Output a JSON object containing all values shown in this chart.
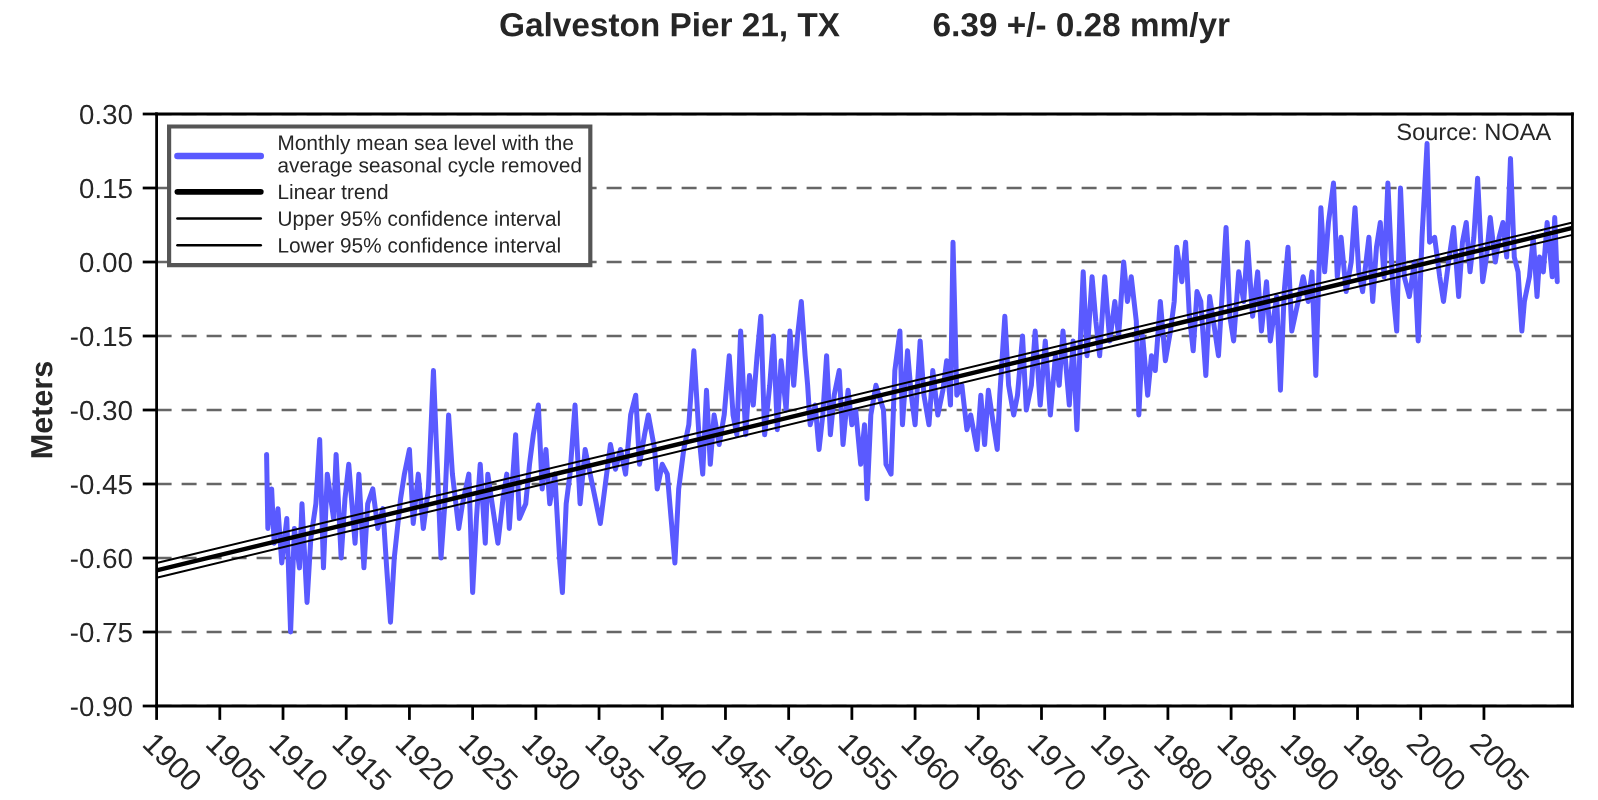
{
  "chart_data": {
    "type": "line",
    "title": "Galveston Pier 21, TX          6.39 +/- 0.28 mm/yr",
    "ylabel": "Meters",
    "annotations": [
      "Source: NOAA"
    ],
    "xlim": [
      1900,
      2012
    ],
    "xticks": [
      1900,
      1905,
      1910,
      1915,
      1920,
      1925,
      1930,
      1935,
      1940,
      1945,
      1950,
      1955,
      1960,
      1965,
      1970,
      1975,
      1980,
      1985,
      1990,
      1995,
      2000,
      2005
    ],
    "ylim": [
      -0.9,
      0.3
    ],
    "yticks": [
      {
        "value": -0.9,
        "label": "-0.90"
      },
      {
        "value": -0.75,
        "label": "-0.75"
      },
      {
        "value": -0.6,
        "label": "-0.60"
      },
      {
        "value": -0.45,
        "label": "-0.45"
      },
      {
        "value": -0.3,
        "label": "-0.30"
      },
      {
        "value": -0.15,
        "label": "-0.15"
      },
      {
        "value": 0,
        "label": "0.00"
      },
      {
        "value": 0.15,
        "label": "0.15"
      },
      {
        "value": 0.3,
        "label": "0.30"
      }
    ],
    "grid": "y",
    "legend": "top left",
    "series": [
      {
        "name": "Monthly mean sea level with the\naverage seasonal cycle removed",
        "color": "#5a5aff",
        "x": [
          1908.7,
          1908.8,
          1909.1,
          1909.3,
          1909.6,
          1909.9,
          1910.3,
          1910.6,
          1910.9,
          1911.3,
          1911.5,
          1911.9,
          1912.2,
          1912.6,
          1912.9,
          1913.2,
          1913.5,
          1914.0,
          1914.2,
          1914.6,
          1914.9,
          1915.2,
          1915.7,
          1916.0,
          1916.4,
          1916.7,
          1917.1,
          1917.5,
          1917.9,
          1918.2,
          1918.5,
          1918.8,
          1919.3,
          1919.6,
          1920.0,
          1920.3,
          1920.7,
          1921.1,
          1921.5,
          1921.9,
          1922.1,
          1922.5,
          1922.8,
          1923.1,
          1923.4,
          1923.9,
          1924.2,
          1924.7,
          1925.0,
          1925.3,
          1925.6,
          1926.0,
          1926.2,
          1926.6,
          1927.0,
          1927.4,
          1927.7,
          1927.9,
          1928.4,
          1928.7,
          1929.2,
          1929.5,
          1929.8,
          1930.2,
          1930.5,
          1930.8,
          1931.1,
          1931.5,
          1931.9,
          1932.1,
          1932.4,
          1932.7,
          1933.1,
          1933.5,
          1933.9,
          1934.3,
          1934.7,
          1935.1,
          1935.5,
          1935.9,
          1936.3,
          1936.7,
          1937.1,
          1937.5,
          1937.9,
          1938.2,
          1938.6,
          1938.9,
          1939.4,
          1939.6,
          1940.0,
          1940.4,
          1940.7,
          1941.0,
          1941.3,
          1941.7,
          1942.1,
          1942.5,
          1942.9,
          1943.2,
          1943.5,
          1943.8,
          1944.1,
          1944.5,
          1944.9,
          1945.3,
          1945.6,
          1945.9,
          1946.2,
          1946.6,
          1946.9,
          1947.2,
          1947.5,
          1947.8,
          1948.1,
          1948.5,
          1948.8,
          1949.1,
          1949.4,
          1949.8,
          1950.1,
          1950.4,
          1950.7,
          1951.0,
          1951.3,
          1951.5,
          1951.7,
          1952.1,
          1952.4,
          1952.7,
          1953.0,
          1953.3,
          1953.6,
          1954.0,
          1954.3,
          1954.7,
          1955.0,
          1955.3,
          1955.7,
          1956.0,
          1956.2,
          1956.5,
          1956.9,
          1957.5,
          1957.7,
          1958.1,
          1958.4,
          1958.8,
          1959.0,
          1959.4,
          1959.7,
          1960.0,
          1960.4,
          1960.7,
          1961.1,
          1961.4,
          1961.8,
          1962.2,
          1962.5,
          1962.8,
          1963.0,
          1963.3,
          1963.7,
          1964.1,
          1964.4,
          1964.9,
          1965.2,
          1965.5,
          1965.8,
          1966.2,
          1966.5,
          1966.7,
          1967.1,
          1967.4,
          1967.8,
          1968.1,
          1968.5,
          1968.8,
          1969.2,
          1969.5,
          1969.9,
          1970.3,
          1970.7,
          1971.1,
          1971.4,
          1971.7,
          1972.2,
          1972.5,
          1972.8,
          1973.1,
          1973.3,
          1973.6,
          1974.0,
          1974.3,
          1974.6,
          1975.0,
          1975.4,
          1975.8,
          1976.1,
          1976.5,
          1976.8,
          1977.1,
          1977.5,
          1977.7,
          1978.0,
          1978.4,
          1978.7,
          1979.0,
          1979.4,
          1979.8,
          1980.2,
          1980.5,
          1980.7,
          1981.1,
          1981.4,
          1981.7,
          1982.0,
          1982.3,
          1982.6,
          1983.0,
          1983.3,
          1983.6,
          1984.0,
          1984.3,
          1984.6,
          1984.9,
          1985.2,
          1985.6,
          1986.0,
          1986.3,
          1986.7,
          1987.1,
          1987.4,
          1987.8,
          1988.1,
          1988.6,
          1988.9,
          1989.2,
          1989.5,
          1989.8,
          1990.3,
          1990.7,
          1991.1,
          1991.4,
          1991.7,
          1992.1,
          1992.4,
          1992.7,
          1993.1,
          1993.4,
          1993.7,
          1994.1,
          1994.5,
          1994.8,
          1995.1,
          1995.4,
          1995.9,
          1996.2,
          1996.5,
          1996.8,
          1997.1,
          1997.4,
          1997.8,
          1998.1,
          1998.4,
          1998.7,
          1999.1,
          1999.5,
          1999.8,
          2000.1,
          2000.5,
          2000.7,
          2001.1,
          2001.5,
          2001.8,
          2002.2,
          2002.6,
          2003.0,
          2003.3,
          2003.6,
          2003.9,
          2004.2,
          2004.5,
          2004.9,
          2005.2,
          2005.5,
          2005.9,
          2006.2,
          2006.5,
          2006.8,
          2007.1,
          2007.4,
          2007.7,
          2008.0,
          2008.2,
          2008.6,
          2008.9,
          2009.2,
          2009.4,
          2009.7,
          2010.0,
          2010.4,
          2010.6,
          2010.8
        ],
        "values": [
          -0.39,
          -0.54,
          -0.46,
          -0.57,
          -0.5,
          -0.61,
          -0.52,
          -0.75,
          -0.54,
          -0.62,
          -0.49,
          -0.69,
          -0.56,
          -0.49,
          -0.36,
          -0.62,
          -0.43,
          -0.52,
          -0.39,
          -0.6,
          -0.48,
          -0.41,
          -0.57,
          -0.43,
          -0.62,
          -0.49,
          -0.46,
          -0.54,
          -0.5,
          -0.62,
          -0.73,
          -0.6,
          -0.48,
          -0.43,
          -0.38,
          -0.53,
          -0.43,
          -0.54,
          -0.46,
          -0.22,
          -0.35,
          -0.6,
          -0.49,
          -0.31,
          -0.43,
          -0.54,
          -0.49,
          -0.43,
          -0.67,
          -0.52,
          -0.41,
          -0.57,
          -0.43,
          -0.5,
          -0.57,
          -0.48,
          -0.43,
          -0.54,
          -0.35,
          -0.52,
          -0.49,
          -0.41,
          -0.35,
          -0.29,
          -0.46,
          -0.38,
          -0.49,
          -0.43,
          -0.61,
          -0.67,
          -0.49,
          -0.43,
          -0.29,
          -0.49,
          -0.38,
          -0.43,
          -0.48,
          -0.53,
          -0.45,
          -0.37,
          -0.42,
          -0.38,
          -0.43,
          -0.31,
          -0.27,
          -0.41,
          -0.35,
          -0.31,
          -0.38,
          -0.46,
          -0.41,
          -0.43,
          -0.52,
          -0.61,
          -0.46,
          -0.38,
          -0.33,
          -0.18,
          -0.35,
          -0.43,
          -0.26,
          -0.41,
          -0.31,
          -0.37,
          -0.31,
          -0.19,
          -0.31,
          -0.35,
          -0.14,
          -0.35,
          -0.23,
          -0.29,
          -0.19,
          -0.11,
          -0.35,
          -0.25,
          -0.15,
          -0.34,
          -0.2,
          -0.3,
          -0.14,
          -0.25,
          -0.15,
          -0.08,
          -0.19,
          -0.25,
          -0.33,
          -0.29,
          -0.38,
          -0.31,
          -0.19,
          -0.35,
          -0.27,
          -0.22,
          -0.37,
          -0.26,
          -0.33,
          -0.3,
          -0.41,
          -0.33,
          -0.48,
          -0.31,
          -0.25,
          -0.3,
          -0.41,
          -0.43,
          -0.22,
          -0.14,
          -0.33,
          -0.18,
          -0.27,
          -0.33,
          -0.16,
          -0.27,
          -0.33,
          -0.22,
          -0.31,
          -0.26,
          -0.2,
          -0.29,
          0.04,
          -0.27,
          -0.25,
          -0.34,
          -0.31,
          -0.38,
          -0.27,
          -0.37,
          -0.26,
          -0.33,
          -0.38,
          -0.27,
          -0.11,
          -0.25,
          -0.31,
          -0.27,
          -0.15,
          -0.3,
          -0.25,
          -0.14,
          -0.29,
          -0.16,
          -0.31,
          -0.19,
          -0.25,
          -0.14,
          -0.29,
          -0.16,
          -0.34,
          -0.14,
          -0.02,
          -0.19,
          -0.03,
          -0.12,
          -0.19,
          -0.03,
          -0.16,
          -0.08,
          -0.15,
          0.0,
          -0.08,
          -0.03,
          -0.12,
          -0.31,
          -0.15,
          -0.27,
          -0.19,
          -0.22,
          -0.08,
          -0.2,
          -0.14,
          -0.08,
          0.03,
          -0.04,
          0.04,
          -0.11,
          -0.18,
          -0.06,
          -0.08,
          -0.23,
          -0.07,
          -0.12,
          -0.19,
          -0.06,
          0.07,
          -0.11,
          -0.16,
          -0.02,
          -0.08,
          0.04,
          -0.11,
          -0.02,
          -0.14,
          -0.04,
          -0.16,
          -0.07,
          -0.26,
          -0.06,
          0.03,
          -0.14,
          -0.08,
          -0.03,
          -0.08,
          -0.02,
          -0.23,
          0.11,
          -0.02,
          0.08,
          0.16,
          -0.03,
          0.05,
          -0.06,
          0.0,
          0.11,
          -0.02,
          -0.06,
          0.05,
          -0.08,
          0.03,
          0.08,
          -0.03,
          0.16,
          -0.06,
          -0.14,
          0.15,
          -0.03,
          -0.07,
          0.0,
          -0.16,
          0.05,
          0.24,
          0.04,
          0.05,
          -0.03,
          -0.08,
          0.0,
          0.07,
          -0.07,
          0.04,
          0.08,
          -0.02,
          0.05,
          0.17,
          -0.04,
          0.01,
          0.09,
          0.0,
          0.05,
          0.08,
          0.01,
          0.21,
          0.01,
          -0.02,
          -0.14,
          -0.08,
          -0.03,
          0.05,
          -0.07,
          0.01,
          -0.02,
          0.08,
          -0.03,
          0.09,
          -0.04
        ]
      },
      {
        "name": "Linear trend",
        "color": "#000000",
        "x": [
          1900,
          2012
        ],
        "values": [
          -0.625,
          0.069
        ]
      },
      {
        "name": "Upper 95% confidence interval",
        "color": "#000000",
        "x": [
          1900,
          2012
        ],
        "values": [
          -0.61,
          0.08
        ]
      },
      {
        "name": "Lower 95% confidence interval",
        "color": "#000000",
        "x": [
          1900,
          2012
        ],
        "values": [
          -0.64,
          0.055
        ]
      }
    ]
  }
}
